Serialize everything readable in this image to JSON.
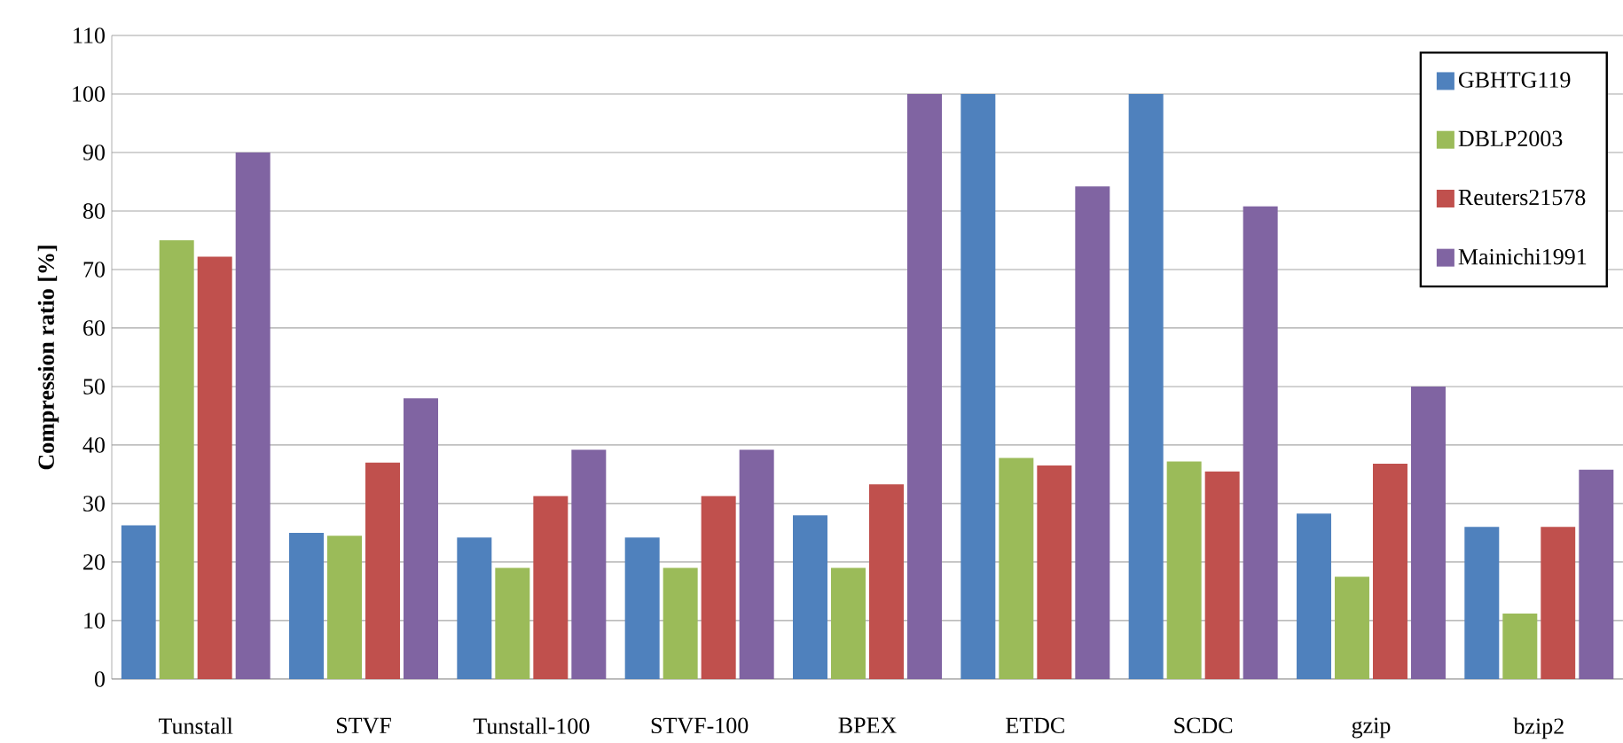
{
  "chart_data": {
    "type": "bar",
    "ylabel": "Compression ratio [%]",
    "categories": [
      "Tunstall",
      "STVF",
      "Tunstall-100",
      "STVF-100",
      "BPEX",
      "ETDC",
      "SCDC",
      "gzip",
      "bzip2"
    ],
    "series": [
      {
        "name": "GBHTG119",
        "color": "#4f81bd",
        "values": [
          26.3,
          25,
          24.2,
          24.2,
          28,
          100,
          100,
          28.3,
          26
        ]
      },
      {
        "name": "DBLP2003",
        "color": "#9bbb59",
        "values": [
          75,
          24.5,
          19,
          19,
          19,
          37.8,
          37.2,
          17.5,
          11.2
        ]
      },
      {
        "name": "Reuters21578",
        "color": "#c0504d",
        "values": [
          72.2,
          37,
          31.3,
          31.3,
          33.3,
          36.5,
          35.5,
          36.8,
          26
        ]
      },
      {
        "name": "Mainichi1991",
        "color": "#8064a2",
        "values": [
          90,
          48,
          39.2,
          39.2,
          100,
          84.2,
          80.8,
          50,
          35.8
        ]
      }
    ],
    "ylim": [
      0,
      110
    ],
    "yticks": [
      0,
      10,
      20,
      30,
      40,
      50,
      60,
      70,
      80,
      90,
      100,
      110
    ],
    "grid": "y",
    "legend": "top right"
  }
}
